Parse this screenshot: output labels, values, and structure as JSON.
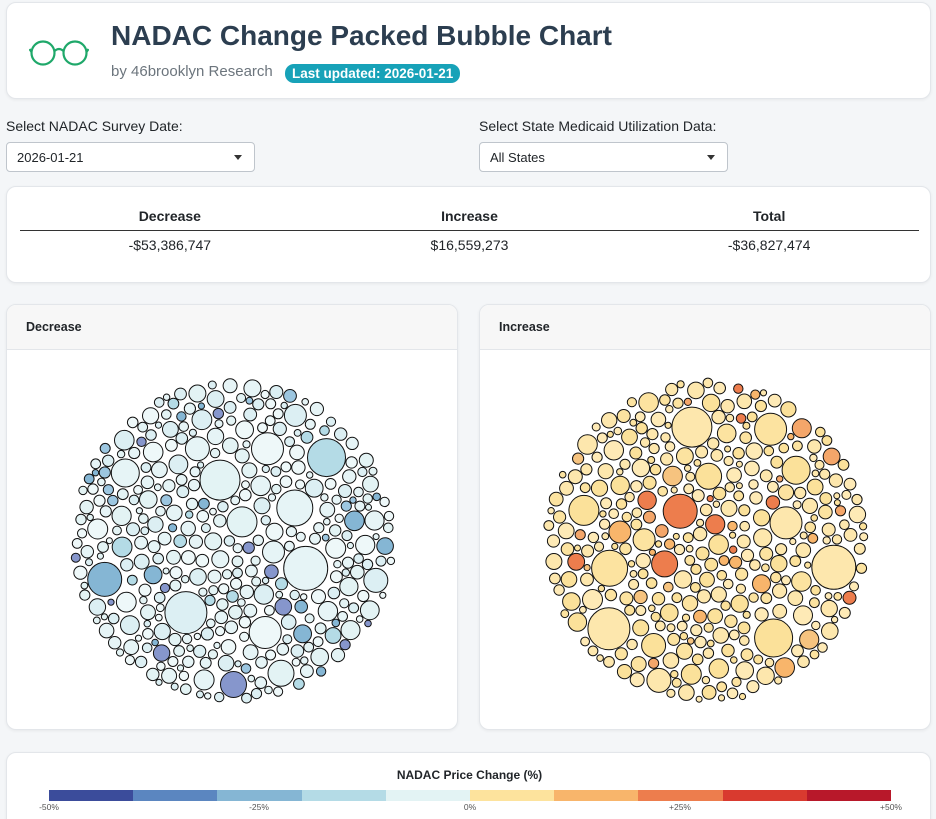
{
  "header": {
    "title": "NADAC Change Packed Bubble Chart",
    "byline": "by 46brooklyn Research",
    "updated": "Last updated: 2026-01-21"
  },
  "controls": {
    "survey_label": "Select NADAC Survey Date:",
    "survey_value": "2026-01-21",
    "state_label": "Select State Medicaid Utilization Data:",
    "state_value": "All States"
  },
  "summary": {
    "headers": [
      "Decrease",
      "Increase",
      "Total"
    ],
    "values": [
      "-$53,386,747",
      "$16,559,273",
      "-$36,827,474"
    ]
  },
  "panels": {
    "decrease_title": "Decrease",
    "increase_title": "Increase"
  },
  "legend": {
    "title": "NADAC Price Change (%)",
    "colors": [
      "#3b4c9b",
      "#5b86c0",
      "#85b6d4",
      "#b4dbe6",
      "#e3f3f4",
      "#fde39d",
      "#f8b56b",
      "#ed7d4d",
      "#d93a2f",
      "#b8182a"
    ],
    "ticks": [
      "-50%",
      "-25%",
      "0%",
      "+25%",
      "+50%"
    ]
  },
  "chart_data": [
    {
      "type": "packed-bubble",
      "title": "Decrease",
      "color_scale": "NADAC Price Change (%)",
      "total": "-$53,386,747",
      "note": "Hundreds of bubbles, one per drug; bubble area proportional to dollar impact; colored by percent change (mostly 0% to -25%, a few near -40%)."
    },
    {
      "type": "packed-bubble",
      "title": "Increase",
      "color_scale": "NADAC Price Change (%)",
      "total": "$16,559,273",
      "note": "Hundreds of bubbles, one per drug; bubble area proportional to dollar impact; colored by percent change (mostly 0% to +10%, a few up to +30%)."
    }
  ]
}
